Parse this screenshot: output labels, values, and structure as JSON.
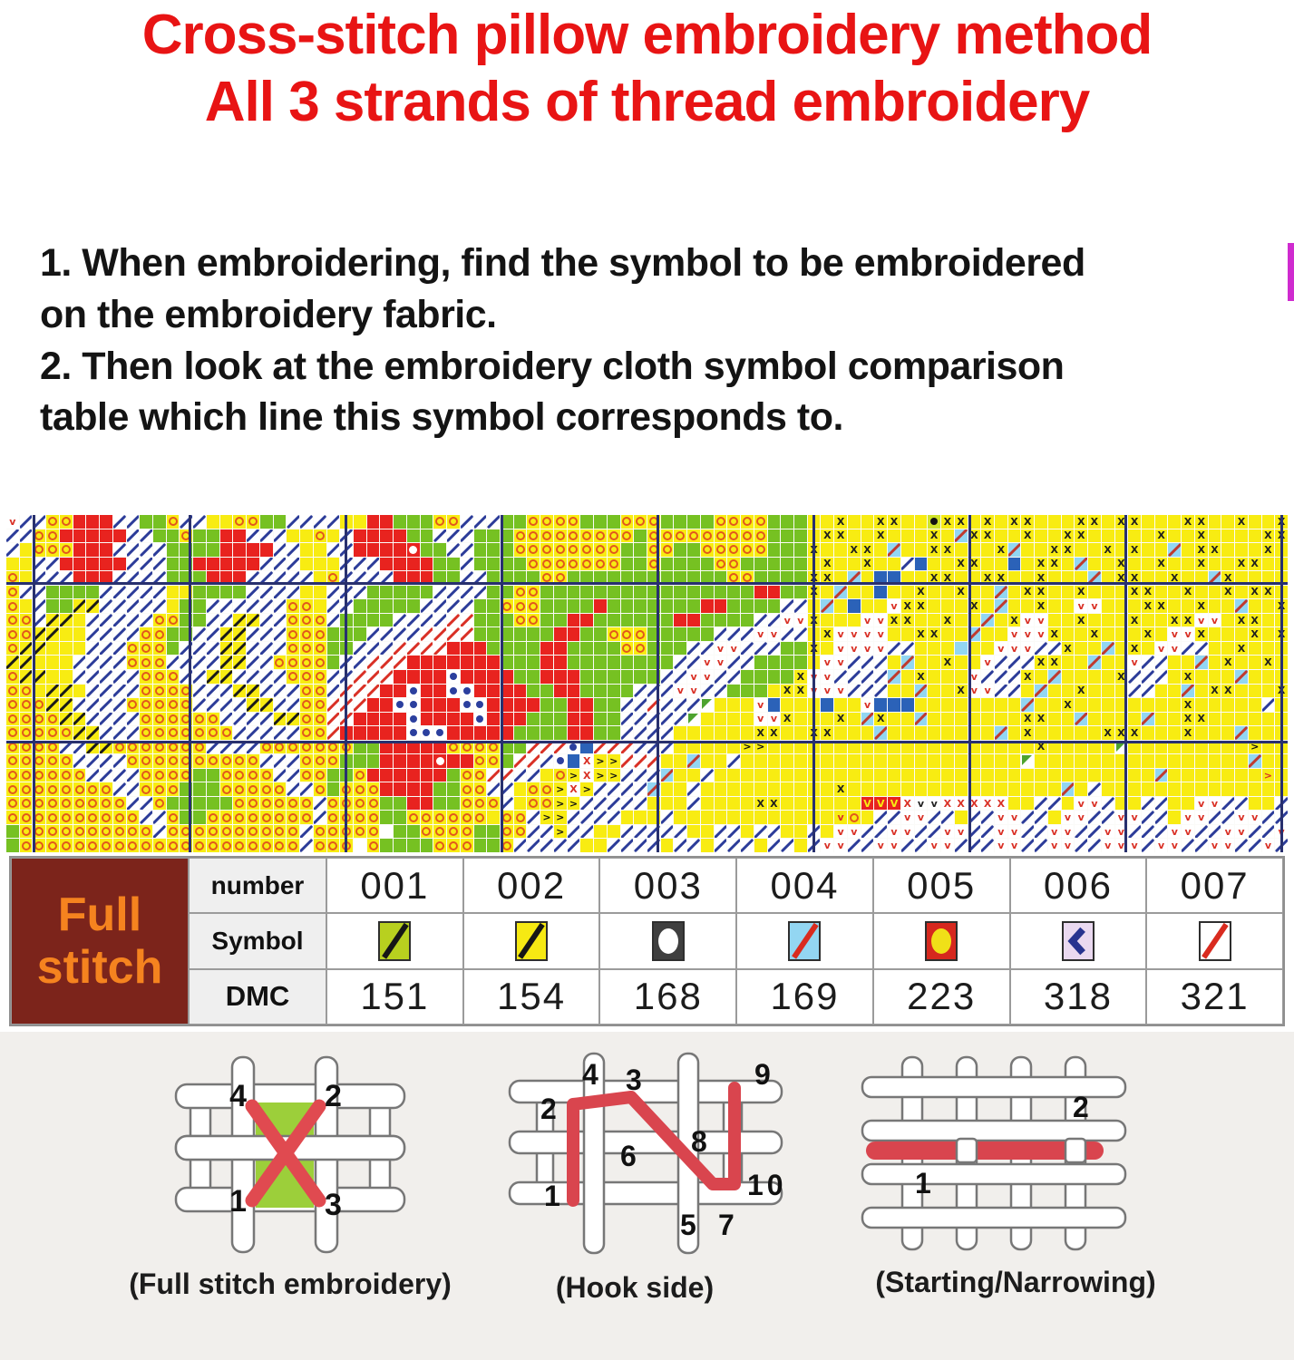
{
  "title": {
    "line1": "Cross-stitch pillow embroidery method",
    "line2": "All 3 strands of thread embroidery"
  },
  "instructions": {
    "text": "1. When embroidering, find the symbol to be embroidered\non the embroidery fabric.\n2. Then look at the embroidery cloth symbol comparison\ntable which line this symbol corresponds to."
  },
  "pattern": {
    "cols": 96,
    "rows": 24,
    "pad": "y",
    "vlines": [
      29,
      201,
      373,
      545,
      717,
      889,
      1061,
      1233,
      1405
    ],
    "hlines": [
      74,
      249
    ],
    "legend": {
      "R": "red full stitch",
      "G": "green full stitch",
      "y": "yellow full stitch",
      "o": "orange ring on yellow",
      "b": "blue slash",
      "r": "red slash",
      "Y": "black slash on yellow",
      "C": "red slash on cyan",
      "X": "black X on yellow",
      "x": "red X on white",
      "v": "red v",
      "n": "black v",
      "V": "red v on yellow",
      "M": "yellow V on red",
      "B": "blue full stitch",
      "c": "cyan full stitch",
      "d": "blue dot",
      "p": "black dot",
      "w": "white circle on red",
      "g": "green corner triangle",
      ">": "black chevron on yellow",
      "}": "red chevron on yellow",
      ".": "empty fabric"
    },
    "palette": {
      ".": {
        "k": "plain",
        "bg": "#ffffff"
      },
      "R": {
        "k": "plain",
        "bg": "#e8231f"
      },
      "G": {
        "k": "plain",
        "bg": "#76c122"
      },
      "y": {
        "k": "plain",
        "bg": "#f8ec12"
      },
      "B": {
        "k": "plain",
        "bg": "#2b62b8"
      },
      "c": {
        "k": "plain",
        "bg": "#92d6f2"
      },
      "o": {
        "k": "ring",
        "bg": "#f8ec12",
        "fg": "#e2581c"
      },
      "b": {
        "k": "slash",
        "bg": "#ffffff",
        "fg": "#2c3c99"
      },
      "r": {
        "k": "slash",
        "bg": "#ffffff",
        "fg": "#d93025"
      },
      "Y": {
        "k": "slash",
        "bg": "#f8ec12",
        "fg": "#1a1a1a"
      },
      "C": {
        "k": "slash",
        "bg": "#92d6f2",
        "fg": "#c03a2e"
      },
      "X": {
        "k": "glyph",
        "bg": "#f8ec12",
        "fg": "#1f1f1f",
        "g": "X"
      },
      "x": {
        "k": "glyph",
        "bg": "#ffffff",
        "fg": "#d93025",
        "g": "X"
      },
      "v": {
        "k": "glyph",
        "bg": "#ffffff",
        "fg": "#d93025",
        "g": "v"
      },
      "n": {
        "k": "glyph",
        "bg": "#ffffff",
        "fg": "#222222",
        "g": "v"
      },
      "V": {
        "k": "glyph",
        "bg": "#f8ec12",
        "fg": "#d93025",
        "g": "v"
      },
      "M": {
        "k": "glyph",
        "bg": "#e8231f",
        "fg": "#f8ec12",
        "g": "V"
      },
      ">": {
        "k": "glyph",
        "bg": "#f8ec12",
        "fg": "#111111",
        "g": ">"
      },
      "}": {
        "k": "glyph",
        "bg": "#f8ec12",
        "fg": "#d93025",
        "g": ">"
      },
      "d": {
        "k": "dot",
        "bg": "#ffffff",
        "fg": "#2b3f9e"
      },
      "p": {
        "k": "dot",
        "bg": "#cfe32a",
        "fg": "#111111"
      },
      "w": {
        "k": "circle",
        "bg": "#e8231f",
        "fg": "#ffffff"
      },
      "g": {
        "k": "tri",
        "bg": "#ffffff",
        "fg": "#4da32f"
      }
    },
    "rows_data": [
      "vbbooRRRbbGGobbyyooGGbbbbyyRRGGGoobbbGGooooGGGoooGGGGooooGGGyyXyyXXyypXXyXyXXyyyXXyXXyyyXXyyXyyX",
      "bbooRRRRRbbGGoGGRRbbbyyoybRRRRGGbbbGGGoooooooooGoooooooooGGGyXXyyXyyyXyCXXyyXyyXXyyyyyXyyXyyyyXX",
      "byoooRRRbbbbGGGGRRRRbbyybbRRRRwGGbbGGGooooooooGGooGGoooooGGGXyyXXyCyyXXyyyXCyyXXyyXyXyyCyXXyyyXy",
      "yybbRRRRRbbbGGRRRRRbbbyyybbbRRRRGGbGGGGoooooooGGoGGGGooGGGGGyXyyXyybByyXXyyByXXyCyyXyyXyyXyyXXyy",
      "oybbbRRRbbbbGGGRRRbbbbbyobbbbRRRGGbbGGGGooGGGGGGGGGGGGooGGGGXXyCyBByyXXyyXXyyXyyyCyXXyyXyyCXyyyy",
      "obbGGGGbbbbbyyGGGGbbbbyybbbGGGGGbbbbGGooGGGGGGGGGGGGGGGGRRGGXyCyyByyXyyXyyCyXXyyXyyyXXyyXyyXyXXy",
      "oybGGYYbbbbbyGGbbbbbbooybbGGGGGbbbbGGoooGGGGRGGGGGGGRRGGGGbbyCyByyvXXyyyXyCyyXyyvvyyyXXyyXyyCyyX",
      "oobYYybbbbbooGGbbYYbbooobGGGGbbbbrrGGGooGGRRGGGGGGRRGGGGbbvvXyyyvvXXyyXyyCyXvvyyXyyyXyyXXvvyXXyy",
      "ooYYyybbbbooGGbbYYbbboooGGGbbbbrrrrGGGGGGRRGGoooGGGGGbbbvvbbyXvvvvyyXXyyCyyvvvXyyXyyyXyvvXyyyXyX",
      "oYYyyybbboooGbbbYYbbboooGGbbbrrrrRRRGGGGRRGGGGooGGGbbvvbbbGGXyvvvvbbyyycyyvvvbbXyyCyXyvvbbyyXyyy",
      "YYyyybbbbooobbbbYYbbooooGbbrrrRRRRRRRGGGRRGGGGGGGGbbvvbbGGGGyvvbbbyCyyXyyvbbbXXyyCyyvbbyyCyXyyXy",
      "oYYyybbbbbooobbYYbbbbooobbrrrRRRRdRRRRGGRRRGGGGGGbbvvbbGGGGXvvbbbbCyXyyyvbbbXyCyyyyXbbbyXyyyCyyy",
      "ooyYYybbbboooobbbYYbbboobrrrRRdRRddRRRRGGRRGGGGbbbvvbbGGGyXXvvvbbbyyCyyXvvbbyCyyXyyybbyyCyXXyyyX",
      "oooYYbbbbooooobbbbYYbboorrrRRddRRRddRRRRGGRRGGbbrbbbgyyyvByyyByyvBBByyyyyyyyCyyXyyyyyyyyXyyyyyby",
      "ooooYYbbbboooooobbbbYYoorrRRRRdRRRRdRRRGGGRRGGbbbbbgyyyyvvXyyyXyCXyyCyyyyyyyXXyyCyyyyCyyXXyyyyyy",
      "oooooYYbbbooooooobbbbboorRRRRRdddRRRRRGGGGRRGGbbbbyyyyyyXXyyXXyyyCyyyyyyyyCyXyyyyyXXXyyyXyyyCyyy",
      "oooobbYYooooooobbbboooooooGGRRRRRooooGGrrrdBrrrbbbyyyyy>>yyyyyyyyyyyyyyyyyyyyXyyyyygyyyyyyyyy>yy",
      "ooooobbbboooooooooobbboooGGGRRRRwRRooGrrbdBx>>rrryyCyybyyyyyyyyyyyyyyyyyyyyygyyyyyyyyyyyyyyyyCyy",
      "oooooobbbbooooGGoooobbooGGoRRRRRRGoorrbbyo>x>>bbbCyybyyyyyyyyyyyyyyyyyyyyyyyyyyyyyyyyyCyyyyyyy}y",
      "oooooooobboooGGGooooobboGoooRRRRGGoobbyoo>x>bbbbCyybyyyyyyyyyyXyyyyyyyyyyyyyyyyCybyyyyyyyyyyyyyy",
      "ooooooooobboGGGGGoooooobooooGGRRGGooobyoo>>bbbbbyyybyyyyXXyyyyyyMMMxnnxxxxxyybbyvvbyybbyyvvbbyybb",
      "oooooooooobboGGoooooooobooooGGooooooyoob>>bbbbyyybyyyyyyyyyyyyVoybbvvbbybbvvbbyvvbbvvbbyvvbbvvbb",
      "Gooooooooooboooooooooobooooo GGooooGGoobb>bbyybbbbbyybbybbyybyvvbbvvbbvvbbvvbbvvbbvvbbbvvbbvvbbvv",
      "Gooooooooooooooooooooobooo oGGGGoooGGobbbbbyybbbbybbybbbybbybvvbbvvbbvvbbbvvbbvvbbvvvbvvbbvvbbvbb"
    ]
  },
  "table": {
    "corner_lines": [
      "Full",
      "stitch"
    ],
    "row_headers": [
      "number",
      "Symbol",
      "DMC"
    ],
    "columns": [
      {
        "number": "001",
        "dmc": "151",
        "symbol": {
          "type": "slash",
          "bg": "#b8d01f",
          "fg": "#161616"
        }
      },
      {
        "number": "002",
        "dmc": "154",
        "symbol": {
          "type": "slash",
          "bg": "#f6e913",
          "fg": "#161616"
        }
      },
      {
        "number": "003",
        "dmc": "168",
        "symbol": {
          "type": "ellipse",
          "bg": "#3f3f3f",
          "fg": "#ffffff"
        }
      },
      {
        "number": "004",
        "dmc": "169",
        "symbol": {
          "type": "slash",
          "bg": "#93d6f2",
          "fg": "#d92b1f"
        }
      },
      {
        "number": "005",
        "dmc": "223",
        "symbol": {
          "type": "ellipse",
          "bg": "#d6281e",
          "fg": "#f0e018"
        }
      },
      {
        "number": "006",
        "dmc": "318",
        "symbol": {
          "type": "chevron",
          "bg": "#ead9f0",
          "fg": "#27338f"
        }
      },
      {
        "number": "007",
        "dmc": "321",
        "symbol": {
          "type": "slash",
          "bg": "#ffffff",
          "fg": "#d92b1f"
        }
      }
    ]
  },
  "diagrams": [
    {
      "caption": "(Full stitch embroidery)",
      "numbers": [
        "4",
        "2",
        "1",
        "3"
      ]
    },
    {
      "caption": "(Hook side)",
      "numbers": [
        "2",
        "4",
        "3",
        "9",
        "6",
        "8",
        "1",
        "5",
        "7",
        "10"
      ]
    },
    {
      "caption": "(Starting/Narrowing)",
      "numbers": [
        "1",
        "2"
      ]
    }
  ],
  "colors": {
    "title_red": "#e81414",
    "text_black": "#141414",
    "maroon": "#7c241b",
    "orange": "#f5831f",
    "lower_bg": "#f1efec",
    "grid_navy": "#28306e",
    "thread_red": "#d9454e",
    "artifact_magenta": "#cf2bcf"
  }
}
